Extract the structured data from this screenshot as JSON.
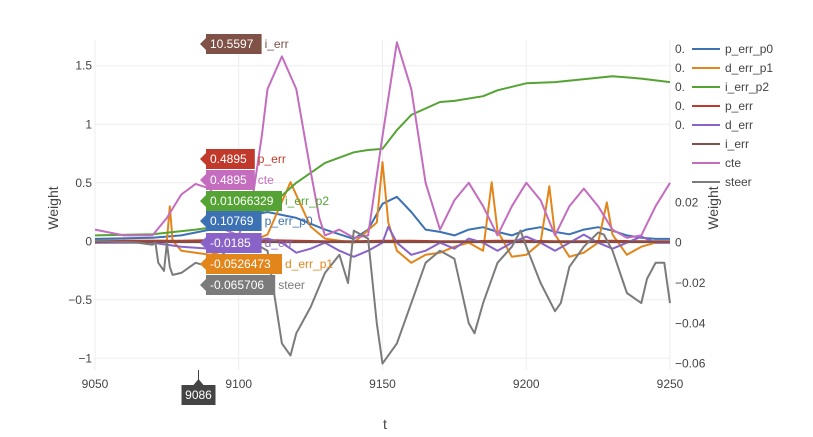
{
  "chart_data": {
    "type": "line",
    "xlabel": "t",
    "ylabel_left": "Weight",
    "ylabel_right": "Weight",
    "xlim": [
      9050,
      9250
    ],
    "ylim_left": [
      -1.1,
      1.72
    ],
    "ylim_right": [
      -0.0632,
      0.1006
    ],
    "x_ticks": [
      9050,
      9100,
      9150,
      9200,
      9250
    ],
    "y_left_ticks": [
      {
        "v": -1,
        "label": "−1"
      },
      {
        "v": -0.5,
        "label": "−0.5"
      },
      {
        "v": 0,
        "label": "0"
      },
      {
        "v": 0.5,
        "label": "0.5"
      },
      {
        "v": 1,
        "label": "1"
      },
      {
        "v": 1.5,
        "label": "1.5"
      }
    ],
    "y_right_ticks": [
      {
        "v": -0.06,
        "label": "−0.06"
      },
      {
        "v": -0.04,
        "label": "−0.04"
      },
      {
        "v": -0.02,
        "label": "−0.02"
      },
      {
        "v": 0,
        "label": "0"
      },
      {
        "v": 0.02,
        "label": "0.02"
      }
    ],
    "grid": true,
    "legend": "top-right",
    "hover": {
      "x_label": "9086",
      "x": 9086,
      "labels": [
        {
          "name": "i_err",
          "text": "10.5597",
          "color": "#7f5147"
        },
        {
          "name": "p_err",
          "text": "0.4895",
          "color": "#c0392b"
        },
        {
          "name": "cte",
          "text": "0.4895",
          "color": "#c46dbf"
        },
        {
          "name": "i_err_p2",
          "text": "0.01066329",
          "color": "#55a334"
        },
        {
          "name": "p_err_p0",
          "text": "0.10769",
          "color": "#3c72b4"
        },
        {
          "name": "d_err",
          "text": "-0.0185",
          "color": "#8a63c8"
        },
        {
          "name": "d_err_p1",
          "text": "-0.0526473",
          "color": "#e2861c"
        },
        {
          "name": "steer",
          "text": "-0.065706",
          "color": "#7b7b7b"
        }
      ]
    },
    "series": [
      {
        "name": "p_err_p0",
        "color": "#3c72b4",
        "axis": "left",
        "x": [
          9050,
          9070,
          9080,
          9090,
          9100,
          9110,
          9120,
          9130,
          9140,
          9145,
          9150,
          9155,
          9160,
          9165,
          9170,
          9175,
          9180,
          9185,
          9190,
          9195,
          9200,
          9205,
          9210,
          9215,
          9220,
          9225,
          9230,
          9235,
          9240,
          9245,
          9250
        ],
        "y": [
          0.02,
          0.03,
          0.05,
          0.1,
          0.2,
          0.25,
          0.2,
          0.1,
          0.02,
          0.1,
          0.32,
          0.38,
          0.25,
          0.1,
          0.08,
          0.05,
          0.1,
          0.12,
          0.08,
          0.05,
          0.1,
          0.12,
          0.08,
          0.06,
          0.1,
          0.12,
          0.09,
          0.05,
          0.03,
          0.02,
          0.02
        ]
      },
      {
        "name": "d_err_p1",
        "color": "#e2861c",
        "axis": "right",
        "x": [
          9050,
          9060,
          9070,
          9075,
          9076,
          9077,
          9080,
          9090,
          9100,
          9110,
          9118,
          9125,
          9130,
          9140,
          9148,
          9150,
          9152,
          9155,
          9160,
          9165,
          9170,
          9175,
          9180,
          9185,
          9188,
          9190,
          9195,
          9200,
          9205,
          9208,
          9210,
          9215,
          9220,
          9225,
          9228,
          9230,
          9235,
          9240,
          9245,
          9250
        ],
        "y": [
          0.0,
          0.001,
          0.001,
          0.001,
          0.018,
          0.001,
          -0.004,
          -0.006,
          -0.002,
          0.004,
          0.03,
          0.008,
          0.002,
          0.0,
          0.01,
          0.04,
          0.01,
          -0.004,
          -0.01,
          -0.006,
          -0.005,
          -0.002,
          0.0,
          -0.004,
          0.03,
          0.006,
          -0.007,
          -0.006,
          0.0,
          0.028,
          0.004,
          -0.007,
          -0.005,
          0.0,
          0.02,
          0.004,
          -0.006,
          -0.002,
          0.0,
          0.0
        ]
      },
      {
        "name": "i_err_p2",
        "color": "#55a334",
        "axis": "left",
        "x": [
          9050,
          9070,
          9085,
          9100,
          9110,
          9120,
          9130,
          9140,
          9145,
          9150,
          9155,
          9160,
          9170,
          9175,
          9185,
          9190,
          9200,
          9210,
          9230,
          9240,
          9250
        ],
        "y": [
          0.05,
          0.06,
          0.1,
          0.15,
          0.28,
          0.5,
          0.67,
          0.76,
          0.78,
          0.79,
          0.95,
          1.08,
          1.19,
          1.2,
          1.24,
          1.29,
          1.35,
          1.36,
          1.41,
          1.39,
          1.36
        ]
      },
      {
        "name": "p_err",
        "color": "#c0392b",
        "axis": "left",
        "x": [
          9050,
          9070,
          9080,
          9090,
          9100,
          9110,
          9120,
          9130,
          9140,
          9150,
          9160,
          9170,
          9180,
          9190,
          9200,
          9210,
          9220,
          9230,
          9240,
          9250
        ],
        "y": [
          0.005,
          0.005,
          0.005,
          0.01,
          0.01,
          0.01,
          0.005,
          0.0,
          0.0,
          0.005,
          0.005,
          0.0,
          0.0,
          0.005,
          0.005,
          0.0,
          0.0,
          0.005,
          0.0,
          0.0
        ]
      },
      {
        "name": "d_err",
        "color": "#8a63c8",
        "axis": "right",
        "x": [
          9050,
          9070,
          9080,
          9090,
          9100,
          9110,
          9115,
          9120,
          9125,
          9130,
          9135,
          9140,
          9145,
          9150,
          9152,
          9155,
          9160,
          9165,
          9170,
          9175,
          9180,
          9185,
          9190,
          9195,
          9200,
          9205,
          9210,
          9215,
          9220,
          9225,
          9230,
          9235,
          9240,
          9245,
          9250
        ],
        "y": [
          0.0,
          0.0,
          -0.002,
          -0.003,
          0.0,
          0.002,
          0.0,
          -0.005,
          -0.003,
          0.0,
          -0.004,
          -0.007,
          -0.004,
          0.0,
          0.008,
          0.0,
          -0.006,
          -0.004,
          0.0,
          -0.003,
          0.002,
          0.0,
          -0.004,
          0.0,
          0.003,
          0.0,
          -0.004,
          0.0,
          0.004,
          0.0,
          -0.003,
          0.0,
          0.003,
          0.0,
          0.0
        ]
      },
      {
        "name": "i_err",
        "color": "#7f5147",
        "axis": "right",
        "x": [
          9050,
          9250
        ],
        "y": [
          0.0004,
          0.0004
        ]
      },
      {
        "name": "cte",
        "color": "#c46dbf",
        "axis": "left",
        "x": [
          9050,
          9060,
          9070,
          9075,
          9080,
          9085,
          9090,
          9093,
          9095,
          9100,
          9105,
          9108,
          9110,
          9115,
          9120,
          9125,
          9128,
          9130,
          9135,
          9140,
          9145,
          9150,
          9155,
          9160,
          9165,
          9170,
          9175,
          9180,
          9185,
          9190,
          9195,
          9200,
          9205,
          9210,
          9215,
          9220,
          9225,
          9230,
          9235,
          9240,
          9245,
          9250
        ],
        "y": [
          0.1,
          0.05,
          0.05,
          0.2,
          0.4,
          0.49,
          0.45,
          0.3,
          0.1,
          0.05,
          0.4,
          0.9,
          1.3,
          1.58,
          1.3,
          0.6,
          0.2,
          0.05,
          0.1,
          0.03,
          0.05,
          0.9,
          1.7,
          1.3,
          0.5,
          0.1,
          0.35,
          0.5,
          0.3,
          0.05,
          0.3,
          0.5,
          0.35,
          0.05,
          0.3,
          0.45,
          0.3,
          0.1,
          0.03,
          0.05,
          0.3,
          0.5
        ]
      },
      {
        "name": "steer",
        "color": "#7b7b7b",
        "axis": "right",
        "x": [
          9050,
          9065,
          9070,
          9071,
          9072,
          9074,
          9075,
          9076,
          9077,
          9080,
          9085,
          9090,
          9095,
          9100,
          9105,
          9110,
          9115,
          9118,
          9120,
          9125,
          9130,
          9135,
          9138,
          9140,
          9145,
          9148,
          9150,
          9155,
          9160,
          9165,
          9170,
          9175,
          9180,
          9182,
          9185,
          9190,
          9195,
          9198,
          9200,
          9205,
          9210,
          9212,
          9215,
          9220,
          9225,
          9227,
          9230,
          9235,
          9240,
          9242,
          9245,
          9248,
          9250
        ],
        "y": [
          0.001,
          0.0,
          -0.001,
          0.0,
          -0.01,
          -0.014,
          0.0,
          -0.012,
          -0.016,
          -0.015,
          -0.01,
          -0.012,
          -0.005,
          0.0,
          0.0,
          -0.004,
          -0.05,
          -0.056,
          -0.045,
          -0.032,
          -0.015,
          -0.006,
          -0.02,
          0.006,
          0.002,
          -0.04,
          -0.06,
          -0.05,
          -0.03,
          -0.01,
          -0.004,
          -0.008,
          -0.04,
          -0.045,
          -0.03,
          -0.01,
          -0.002,
          0.006,
          -0.002,
          -0.02,
          -0.034,
          -0.03,
          -0.012,
          -0.002,
          0.005,
          0.004,
          -0.004,
          -0.025,
          -0.03,
          -0.018,
          -0.01,
          -0.01,
          -0.03
        ]
      }
    ]
  },
  "right_axis_legend_partial": [
    "0.",
    "0.",
    "0.",
    "0.",
    "0."
  ]
}
